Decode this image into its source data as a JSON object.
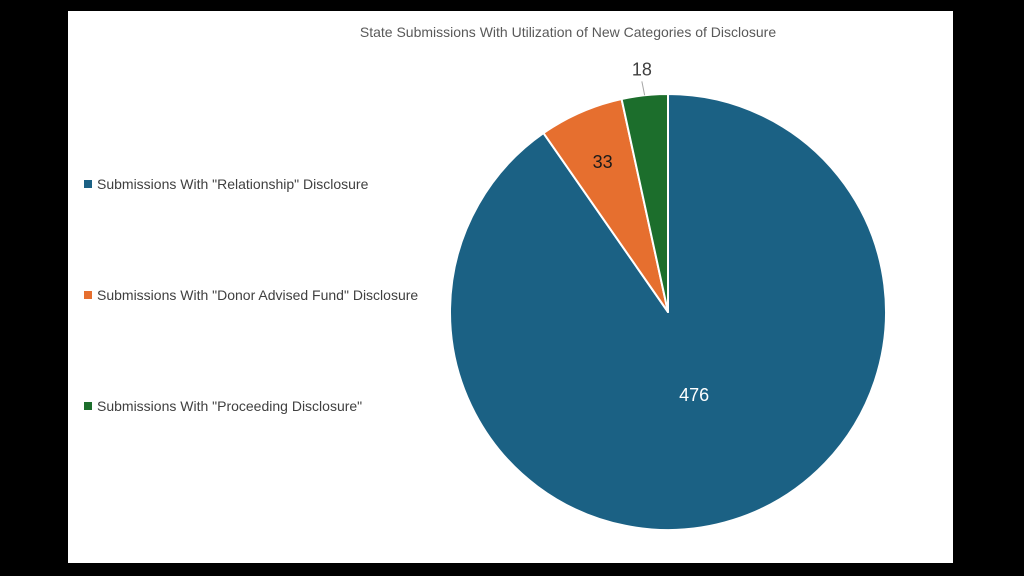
{
  "chart_data": {
    "type": "pie",
    "title": "State Submissions With Utilization of New Categories of Disclosure",
    "legend_position": "left",
    "slices": [
      {
        "label": "Submissions With \"Relationship\" Disclosure",
        "value": 476,
        "value_label": "476",
        "color": "#1b6184",
        "label_color": "#ffffff"
      },
      {
        "label": "Submissions With \"Donor Advised Fund\" Disclosure",
        "value": 33,
        "value_label": "33",
        "color": "#e66f2f",
        "label_color": "#1a1a1a"
      },
      {
        "label": "Submissions With \"Proceeding Disclosure\"",
        "value": 18,
        "value_label": "18",
        "color": "#1c6e2c",
        "label_color": "#404040"
      }
    ]
  }
}
